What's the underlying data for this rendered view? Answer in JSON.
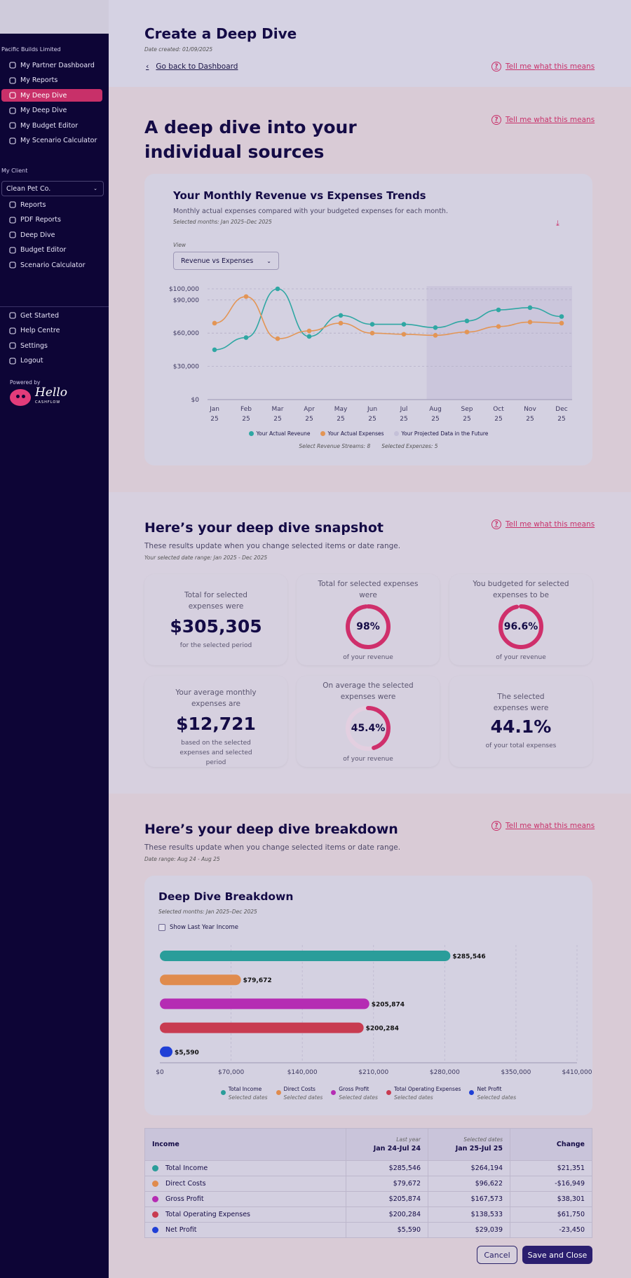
{
  "sidebar": {
    "org": "Pacific Builds Limited",
    "items": [
      {
        "label": "My Partner Dashboard",
        "icon": "dashboard-icon"
      },
      {
        "label": "My Reports",
        "icon": "bar-chart-icon"
      },
      {
        "label": "My Deep Dive",
        "icon": "trend-icon",
        "active": true
      },
      {
        "label": "My Deep Dive",
        "icon": "trend-icon"
      },
      {
        "label": "My Budget Editor",
        "icon": "budget-icon"
      },
      {
        "label": "My Scenario Calculator",
        "icon": "calculator-icon"
      }
    ],
    "client_label": "My Client",
    "client_select": "Clean Pet Co.",
    "client_items": [
      {
        "label": "Reports",
        "icon": "bar-chart-icon"
      },
      {
        "label": "PDF Reports",
        "icon": "download-icon"
      },
      {
        "label": "Deep Dive",
        "icon": "trend-icon"
      },
      {
        "label": "Budget Editor",
        "icon": "budget-icon"
      },
      {
        "label": "Scenario Calculator",
        "icon": "calculator-icon"
      }
    ],
    "footer_items": [
      {
        "label": "Get Started",
        "icon": "document-icon"
      },
      {
        "label": "Help Centre",
        "icon": "help-icon"
      },
      {
        "label": "Settings",
        "icon": "gear-icon"
      },
      {
        "label": "Logout",
        "icon": "logout-icon"
      }
    ],
    "powered_by": "Powered by",
    "logo_text": "Hello",
    "logo_sub": "CASHFLOW"
  },
  "header": {
    "title": "Create a Deep Dive",
    "date_created": "Date created: 01/09/2025",
    "back_link": "Go back to Dashboard",
    "help_link": "Tell me what this means"
  },
  "sources": {
    "heading": "A deep dive into your individual sources",
    "help_link": "Tell me what this means",
    "chart_title": "Your Monthly Revenue vs Expenses Trends",
    "chart_sub": "Monthly actual expenses compared with your budgeted expenses for each month.",
    "chart_months": "Selected months: Jan 2025–Dec 2025",
    "view_label": "View",
    "view_value": "Revenue vs Expenses",
    "legend": [
      "Your Actual Reveune",
      "Your Actual Expenses",
      "Your Projected Data in the Future"
    ],
    "footnote_revenue": "Select Revenue Streams: 8",
    "footnote_expenses": "Selected Expenzes: 5"
  },
  "snapshot": {
    "heading": "Here’s your deep dive snapshot",
    "help_link": "Tell me what this means",
    "sub": "These results update when you change selected items or date range.",
    "range": "Your selected date range: Jan 2025 - Dec 2025",
    "cards": [
      {
        "label": "Total for selected expenses were",
        "value": "$305,305",
        "foot": "for the selected period"
      },
      {
        "label": "Total for selected expenses were",
        "value": "98%",
        "pct": 0.98,
        "foot": "of your revenue"
      },
      {
        "label": "You budgeted for selected expenses to be",
        "value": "96.6%",
        "pct": 0.966,
        "foot": "of your revenue"
      },
      {
        "label": "Your average monthly expenses are",
        "value": "$12,721",
        "foot": "based on the selected expenses and selected period"
      },
      {
        "label": "On average the selected expenses were",
        "value": "45.4%",
        "pct": 0.454,
        "foot": "of your revenue"
      },
      {
        "label": "The selected expenses were",
        "value": "44.1%",
        "foot": "of your total expenses"
      }
    ]
  },
  "breakdown": {
    "heading": "Here’s your deep dive breakdown",
    "help_link": "Tell me what this means",
    "sub": "These results update when you change selected items or date range.",
    "range": "Date range: Aug 24 - Aug 25",
    "card_title": "Deep Dive Breakdown",
    "card_months": "Selected months: Jan 2025–Dec 2025",
    "checkbox": "Show Last Year Income",
    "legend_sub": "Selected dates",
    "table": {
      "headers": {
        "col1": "Income",
        "col2_small": "Last year",
        "col2": "Jan 24-Jul 24",
        "col3_small": "Selected dates",
        "col3": "Jan 25-Jul 25",
        "col4": "Change"
      },
      "rows": [
        {
          "name": "Total Income",
          "color": "#2a9d9a",
          "last": "$285,546",
          "selected": "$264,194",
          "change": "$21,351"
        },
        {
          "name": "Direct Costs",
          "color": "#e08b4d",
          "last": "$79,672",
          "selected": "$96,622",
          "change": "-$16,949"
        },
        {
          "name": "Gross Profit",
          "color": "#b52cb3",
          "last": "$205,874",
          "selected": "$167,573",
          "change": "$38,301"
        },
        {
          "name": "Total Operating Expenses",
          "color": "#c83b50",
          "last": "$200,284",
          "selected": "$138,533",
          "change": "$61,750"
        },
        {
          "name": "Net Profit",
          "color": "#1f3fd6",
          "last": "$5,590",
          "selected": "$29,039",
          "change": "-23,450"
        }
      ]
    }
  },
  "actions": {
    "cancel": "Cancel",
    "save": "Save and Close"
  },
  "chart_data": [
    {
      "type": "line",
      "title": "Your Monthly Revenue vs Expenses Trends",
      "x": [
        "Jan 25",
        "Feb 25",
        "Mar 25",
        "Apr 25",
        "May 25",
        "Jun 25",
        "Jul 25",
        "Aug 25",
        "Sep 25",
        "Oct 25",
        "Nov 25",
        "Dec 25"
      ],
      "ylim": [
        0,
        100000
      ],
      "yticks": [
        "$0",
        "$30,000",
        "$60,000",
        "$90,000",
        "$100,000"
      ],
      "ytick_values": [
        0,
        30000,
        60000,
        90000,
        100000
      ],
      "projected_from": "Aug 25",
      "series": [
        {
          "name": "Your Actual Reveune",
          "color": "#2fa7a3",
          "values": [
            45000,
            56000,
            100000,
            57000,
            76000,
            68000,
            68000,
            65000,
            71000,
            81000,
            83000,
            75000
          ]
        },
        {
          "name": "Your Actual Expenses",
          "color": "#e39555",
          "values": [
            69000,
            93000,
            55000,
            62000,
            69000,
            60000,
            59000,
            58000,
            61000,
            66000,
            70000,
            69000
          ]
        }
      ],
      "grid": true
    },
    {
      "type": "bar",
      "orientation": "horizontal",
      "categories": [
        "Total Income",
        "Direct Costs",
        "Gross Profit",
        "Total Operating Expenses",
        "Net Profit"
      ],
      "values": [
        285546,
        79672,
        205874,
        200284,
        5590
      ],
      "labels": [
        "$285,546",
        "$79,672",
        "$205,874",
        "$200,284",
        "$5,590"
      ],
      "colors": [
        "#2a9d9a",
        "#e08b4d",
        "#b52cb3",
        "#c83b50",
        "#1f3fd6"
      ],
      "xlim": [
        0,
        410000
      ],
      "xticks": [
        "$0",
        "$70,000",
        "$140,000",
        "$210,000",
        "$280,000",
        "$350,000",
        "$410,000"
      ]
    }
  ]
}
